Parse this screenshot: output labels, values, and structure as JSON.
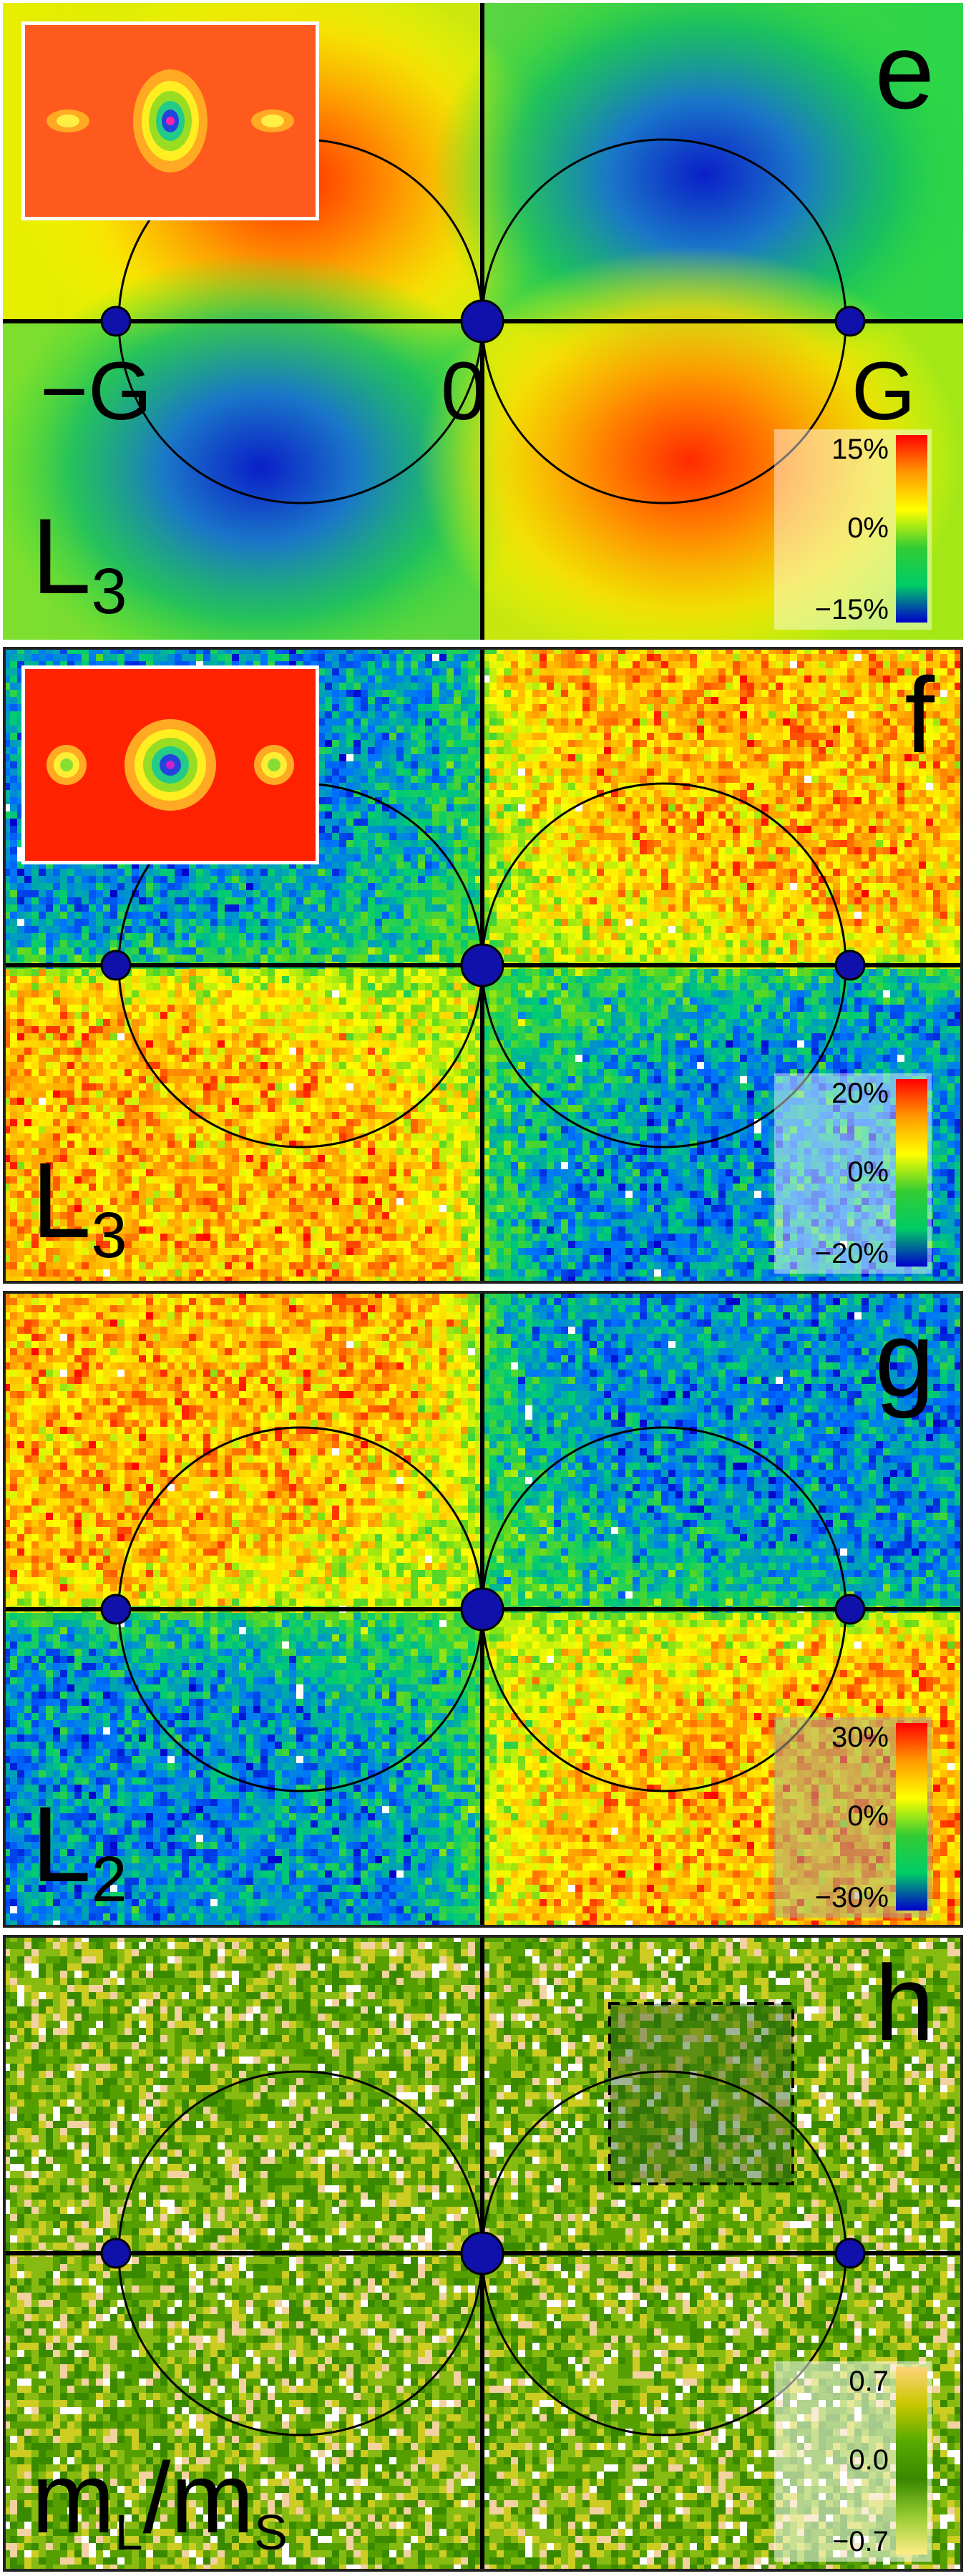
{
  "panels": [
    {
      "letter": "e",
      "symbol": "L",
      "subscript": "3",
      "axis_labels": [
        "−G",
        "0",
        "G"
      ],
      "colorbar_ticks": [
        "15%",
        "0%",
        "−15%"
      ],
      "colorbar_colors": [
        "#ff0000",
        "#ff9900",
        "#ffff00",
        "#33cc33",
        "#00cc66",
        "#0000cc"
      ]
    },
    {
      "letter": "f",
      "symbol": "L",
      "subscript": "3",
      "colorbar_ticks": [
        "20%",
        "0%",
        "−20%"
      ],
      "colorbar_colors": [
        "#ff0000",
        "#ff9900",
        "#ffff00",
        "#33cc33",
        "#00cc66",
        "#0000cc"
      ]
    },
    {
      "letter": "g",
      "symbol": "L",
      "subscript": "2",
      "colorbar_ticks": [
        "30%",
        "0%",
        "−30%"
      ],
      "colorbar_colors": [
        "#ff0000",
        "#ff9900",
        "#ffff00",
        "#33cc33",
        "#00cc66",
        "#0000cc"
      ]
    },
    {
      "letter": "h",
      "symbol": "m",
      "symbol_sub1": "L",
      "symbol_mid": "/m",
      "symbol_sub2": "S",
      "colorbar_ticks": [
        "0.7",
        "0.0",
        "−0.7"
      ],
      "colorbar_colors": [
        "#ffd27a",
        "#c8c800",
        "#55aa00",
        "#3a8800",
        "#99cc33",
        "#ffee88"
      ]
    }
  ]
}
